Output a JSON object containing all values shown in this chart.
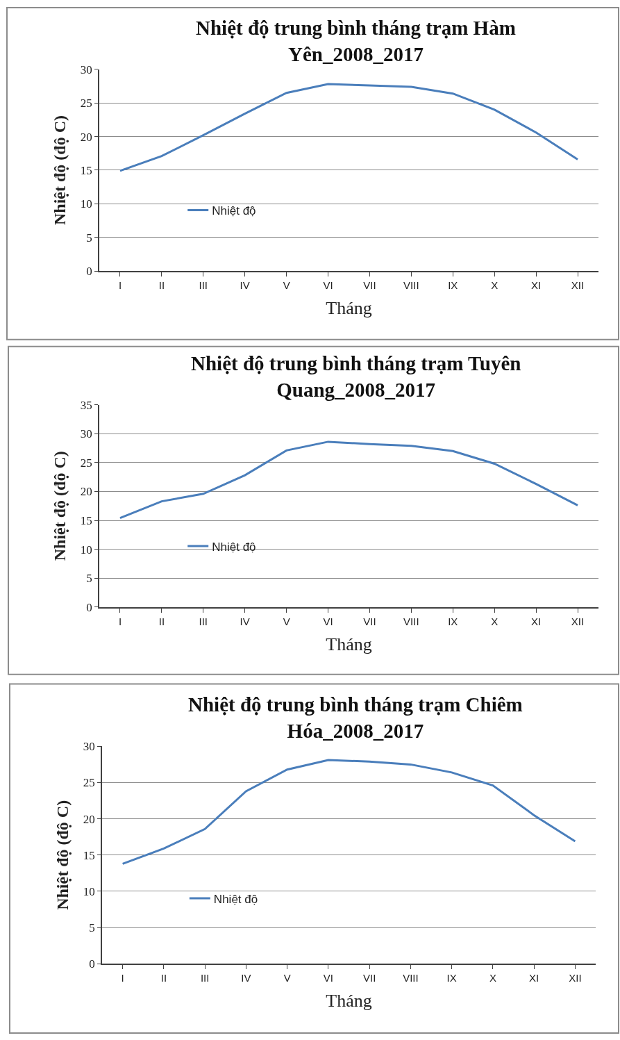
{
  "chart_data": [
    {
      "type": "line",
      "title": "Nhiệt độ trung bình tháng trạm Hàm Yên_2008_2017",
      "xlabel": "Tháng",
      "ylabel": "Nhiệt độ (độ C)",
      "categories": [
        "I",
        "II",
        "III",
        "IV",
        "V",
        "VI",
        "VII",
        "VIII",
        "IX",
        "X",
        "XI",
        "XII"
      ],
      "series": [
        {
          "name": "Nhiệt độ",
          "color": "#4a7ebb",
          "values": [
            14.9,
            17.1,
            20.2,
            23.4,
            26.5,
            27.8,
            27.6,
            27.4,
            26.4,
            24.0,
            20.6,
            16.6
          ]
        }
      ],
      "ylim": [
        0,
        30
      ],
      "yticks": [
        0,
        5,
        10,
        15,
        20,
        25,
        30
      ],
      "grid": "y",
      "legend": "left",
      "marker": "none"
    },
    {
      "type": "line",
      "title": "Nhiệt độ trung bình tháng trạm Tuyên Quang_2008_2017",
      "xlabel": "Tháng",
      "ylabel": "Nhiệt độ (độ C)",
      "categories": [
        "I",
        "II",
        "III",
        "IV",
        "V",
        "VI",
        "VII",
        "VIII",
        "IX",
        "X",
        "XI",
        "XII"
      ],
      "series": [
        {
          "name": "Nhiệt độ",
          "color": "#4a7ebb",
          "values": [
            15.4,
            18.3,
            19.6,
            22.8,
            27.1,
            28.6,
            28.2,
            27.9,
            27.0,
            24.8,
            21.3,
            17.6
          ]
        }
      ],
      "ylim": [
        0,
        35
      ],
      "yticks": [
        0,
        5,
        10,
        15,
        20,
        25,
        30,
        35
      ],
      "grid": "y",
      "legend": "left",
      "marker": "none"
    },
    {
      "type": "line",
      "title": "Nhiệt độ trung bình tháng trạm Chiêm Hóa_2008_2017",
      "xlabel": "Tháng",
      "ylabel": "Nhiệt độ (độ C)",
      "categories": [
        "I",
        "II",
        "III",
        "IV",
        "V",
        "VI",
        "VII",
        "VIII",
        "IX",
        "X",
        "XI",
        "XII"
      ],
      "series": [
        {
          "name": "Nhiệt độ",
          "color": "#4a7ebb",
          "values": [
            13.8,
            15.9,
            18.6,
            23.8,
            26.8,
            28.1,
            27.9,
            27.5,
            26.4,
            24.6,
            20.5,
            16.9
          ]
        }
      ],
      "ylim": [
        0,
        30
      ],
      "yticks": [
        0,
        5,
        10,
        15,
        20,
        25,
        30
      ],
      "grid": "y",
      "legend": "left",
      "marker": "none"
    }
  ]
}
